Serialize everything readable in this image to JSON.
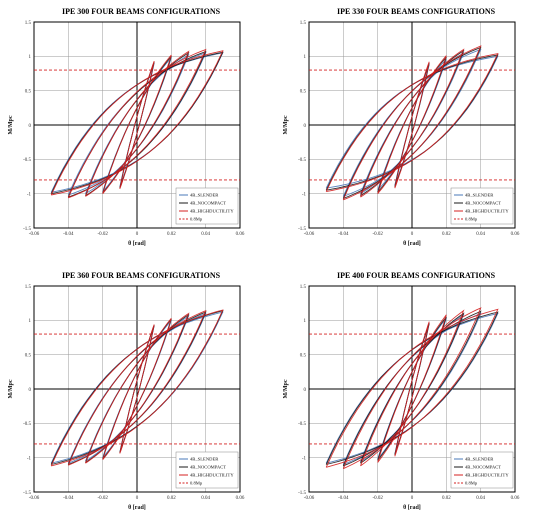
{
  "chart_data": [
    {
      "type": "line",
      "title": "IPE 300 FOUR BEAMS CONFIGURATIONS",
      "xlabel": "θ [rad]",
      "ylabel": "M/Mpc",
      "xlim": [
        -0.06,
        0.06
      ],
      "ylim": [
        -1.5,
        1.5
      ],
      "xticks": [
        "-0.06",
        "-0.04",
        "-0.02",
        "0",
        "0.02",
        "0.04",
        "0.06"
      ],
      "yticks": [
        "1.5",
        "1",
        "0.5",
        "0",
        "-0.5",
        "-1",
        "-1.5"
      ],
      "grid": true,
      "legend_position": "bottom-right",
      "series": [
        {
          "name": "4B_SLENDER",
          "color": "#4a78b8",
          "amplitudes": [
            0.01,
            0.02,
            0.03,
            0.04,
            0.05
          ],
          "peak_pos": [
            0.9,
            0.98,
            1.02,
            1.05,
            1.05
          ],
          "peak_neg": [
            -0.9,
            -0.97,
            -1.0,
            -1.02,
            -0.98
          ]
        },
        {
          "name": "4B_NOCOMPACT",
          "color": "#1a1a1a",
          "amplitudes": [
            0.01,
            0.02,
            0.03,
            0.04,
            0.05
          ],
          "peak_pos": [
            0.92,
            1.0,
            1.05,
            1.07,
            1.06
          ],
          "peak_neg": [
            -0.92,
            -0.99,
            -1.03,
            -1.05,
            -1.0
          ]
        },
        {
          "name": "4B_HIGHDUCTILITY",
          "color": "#d42020",
          "amplitudes": [
            0.01,
            0.02,
            0.03,
            0.04,
            0.05
          ],
          "peak_pos": [
            0.93,
            1.02,
            1.07,
            1.1,
            1.08
          ],
          "peak_neg": [
            -0.93,
            -1.0,
            -1.04,
            -1.06,
            -1.02
          ]
        },
        {
          "name": "0.8Mp",
          "color": "#d42020",
          "dashed": true,
          "values": [
            0.8,
            -0.8
          ]
        }
      ]
    },
    {
      "type": "line",
      "title": "IPE 330 FOUR BEAMS CONFIGURATIONS",
      "xlabel": "θ [rad]",
      "ylabel": "M/Mpc",
      "xlim": [
        -0.06,
        0.06
      ],
      "ylim": [
        -1.5,
        1.5
      ],
      "xticks": [
        "-0.06",
        "-0.04",
        "-0.02",
        "0",
        "0.02",
        "0.04",
        "0.06"
      ],
      "yticks": [
        "1.5",
        "1",
        "0.5",
        "0",
        "-0.5",
        "-1",
        "-1.5"
      ],
      "grid": true,
      "legend_position": "bottom-right",
      "series": [
        {
          "name": "4B_SLENDER",
          "color": "#4a78b8",
          "amplitudes": [
            0.01,
            0.02,
            0.03,
            0.04,
            0.05
          ],
          "peak_pos": [
            0.88,
            0.96,
            1.05,
            1.1,
            1.0
          ],
          "peak_neg": [
            -0.88,
            -0.95,
            -1.0,
            -1.04,
            -0.92
          ]
        },
        {
          "name": "4B_NOCOMPACT",
          "color": "#1a1a1a",
          "amplitudes": [
            0.01,
            0.02,
            0.03,
            0.04,
            0.05
          ],
          "peak_pos": [
            0.9,
            0.99,
            1.08,
            1.13,
            1.02
          ],
          "peak_neg": [
            -0.9,
            -0.98,
            -1.03,
            -1.07,
            -0.95
          ]
        },
        {
          "name": "4B_HIGHDUCTILITY",
          "color": "#d42020",
          "amplitudes": [
            0.01,
            0.02,
            0.03,
            0.04,
            0.05
          ],
          "peak_pos": [
            0.92,
            1.01,
            1.1,
            1.15,
            1.04
          ],
          "peak_neg": [
            -0.92,
            -1.0,
            -1.05,
            -1.09,
            -0.97
          ]
        },
        {
          "name": "0.8Mp",
          "color": "#d42020",
          "dashed": true,
          "values": [
            0.8,
            -0.8
          ]
        }
      ]
    },
    {
      "type": "line",
      "title": "IPE 360 FOUR BEAMS CONFIGURATIONS",
      "xlabel": "θ [rad]",
      "ylabel": "M/Mpc",
      "xlim": [
        -0.06,
        0.06
      ],
      "ylim": [
        -1.5,
        1.5
      ],
      "xticks": [
        "-0.06",
        "-0.04",
        "-0.02",
        "0",
        "0.02",
        "0.04",
        "0.06"
      ],
      "yticks": [
        "1.5",
        "1",
        "0.5",
        "0",
        "-0.5",
        "-1",
        "-1.5"
      ],
      "grid": true,
      "legend_position": "bottom-right",
      "series": [
        {
          "name": "4B_SLENDER",
          "color": "#4a78b8",
          "amplitudes": [
            0.01,
            0.02,
            0.03,
            0.04,
            0.05
          ],
          "peak_pos": [
            0.92,
            1.0,
            1.06,
            1.1,
            1.12
          ],
          "peak_neg": [
            -0.92,
            -1.0,
            -1.05,
            -1.08,
            -1.08
          ]
        },
        {
          "name": "4B_NOCOMPACT",
          "color": "#1a1a1a",
          "amplitudes": [
            0.01,
            0.02,
            0.03,
            0.04,
            0.05
          ],
          "peak_pos": [
            0.93,
            1.02,
            1.08,
            1.12,
            1.14
          ],
          "peak_neg": [
            -0.93,
            -1.02,
            -1.07,
            -1.1,
            -1.1
          ]
        },
        {
          "name": "4B_HIGHDUCTILITY",
          "color": "#d42020",
          "amplitudes": [
            0.01,
            0.02,
            0.03,
            0.04,
            0.05
          ],
          "peak_pos": [
            0.94,
            1.03,
            1.1,
            1.14,
            1.15
          ],
          "peak_neg": [
            -0.94,
            -1.03,
            -1.08,
            -1.11,
            -1.12
          ]
        },
        {
          "name": "0.8Mp",
          "color": "#d42020",
          "dashed": true,
          "values": [
            0.8,
            -0.8
          ]
        }
      ]
    },
    {
      "type": "line",
      "title": "IPE 400 FOUR BEAMS CONFIGURATIONS",
      "xlabel": "θ [rad]",
      "ylabel": "M/Mpc",
      "xlim": [
        -0.06,
        0.06
      ],
      "ylim": [
        -1.5,
        1.5
      ],
      "xticks": [
        "-0.06",
        "-0.04",
        "-0.02",
        "0",
        "0.02",
        "0.04",
        "0.06"
      ],
      "yticks": [
        "1.5",
        "1",
        "0.5",
        "0",
        "-0.5",
        "-1",
        "-1.5"
      ],
      "grid": true,
      "legend_position": "bottom-right",
      "series": [
        {
          "name": "4B_SLENDER",
          "color": "#4a78b8",
          "amplitudes": [
            0.01,
            0.02,
            0.03,
            0.04,
            0.05
          ],
          "peak_pos": [
            0.95,
            1.03,
            1.08,
            1.1,
            1.1
          ],
          "peak_neg": [
            -0.95,
            -1.02,
            -1.06,
            -1.1,
            -1.08
          ]
        },
        {
          "name": "4B_NOCOMPACT",
          "color": "#1a1a1a",
          "amplitudes": [
            0.01,
            0.02,
            0.03,
            0.04,
            0.05
          ],
          "peak_pos": [
            0.96,
            1.05,
            1.1,
            1.13,
            1.12
          ],
          "peak_neg": [
            -0.96,
            -1.04,
            -1.08,
            -1.12,
            -1.1
          ]
        },
        {
          "name": "4B_HIGHDUCTILITY",
          "color": "#d42020",
          "amplitudes": [
            0.01,
            0.02,
            0.03,
            0.04,
            0.05
          ],
          "peak_pos": [
            0.98,
            1.08,
            1.14,
            1.18,
            1.16
          ],
          "peak_neg": [
            -0.98,
            -1.07,
            -1.12,
            -1.16,
            -1.14
          ]
        },
        {
          "name": "0.8Mp",
          "color": "#d42020",
          "dashed": true,
          "values": [
            0.8,
            -0.8
          ]
        }
      ]
    }
  ]
}
